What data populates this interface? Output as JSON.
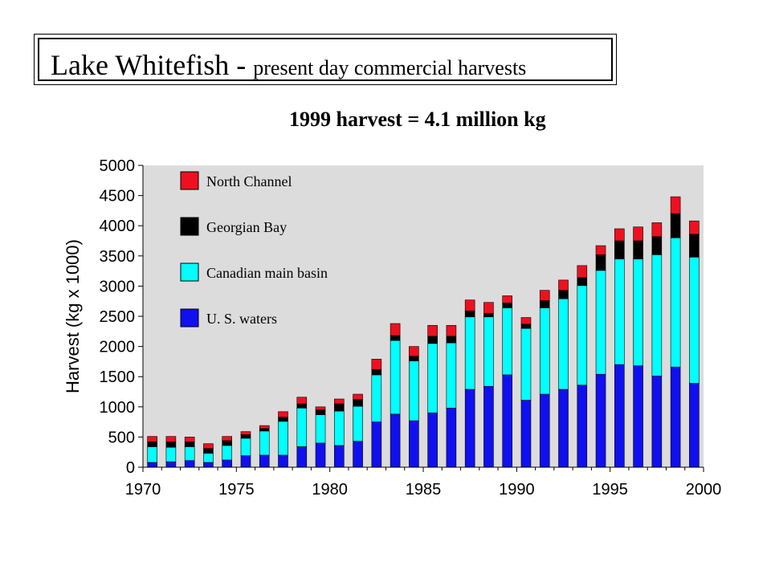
{
  "header": {
    "title_main": "Lake Whitefish - ",
    "title_sub": "present day commercial harvests",
    "subtitle": "1999 harvest = 4.1 million kg"
  },
  "chart_data": {
    "type": "bar",
    "stacked": true,
    "title": "",
    "xlabel": "",
    "ylabel": "Harvest (kg x 1000)",
    "ylim": [
      0,
      5000
    ],
    "yticks": [
      0,
      500,
      1000,
      1500,
      2000,
      2500,
      3000,
      3500,
      4000,
      4500,
      5000
    ],
    "xticks": [
      1970,
      1975,
      1980,
      1985,
      1990,
      1995,
      2000
    ],
    "xlim": [
      1970,
      2000
    ],
    "grid": false,
    "legend_position": "top-left",
    "categories": [
      1970,
      1971,
      1972,
      1973,
      1974,
      1975,
      1976,
      1977,
      1978,
      1979,
      1980,
      1981,
      1982,
      1983,
      1984,
      1985,
      1986,
      1987,
      1988,
      1989,
      1990,
      1991,
      1992,
      1993,
      1994,
      1995,
      1996,
      1997,
      1998,
      1999
    ],
    "series": [
      {
        "name": "U. S. waters",
        "color": "#1010ee",
        "values": [
          80,
          90,
          110,
          80,
          120,
          190,
          200,
          200,
          340,
          400,
          360,
          430,
          750,
          880,
          770,
          900,
          980,
          1290,
          1340,
          1530,
          1110,
          1210,
          1290,
          1360,
          1540,
          1700,
          1680,
          1510,
          1660,
          1390
        ]
      },
      {
        "name": "Canadian main basin",
        "color": "#00ffff",
        "values": [
          260,
          240,
          230,
          150,
          240,
          290,
          400,
          560,
          640,
          470,
          570,
          580,
          780,
          1220,
          990,
          1150,
          1080,
          1200,
          1150,
          1110,
          1190,
          1430,
          1500,
          1650,
          1720,
          1750,
          1770,
          2010,
          2140,
          2090
        ]
      },
      {
        "name": "Georgian Bay",
        "color": "#000000",
        "values": [
          80,
          90,
          80,
          80,
          80,
          60,
          40,
          70,
          70,
          80,
          120,
          110,
          90,
          80,
          80,
          120,
          110,
          100,
          60,
          80,
          70,
          120,
          140,
          130,
          260,
          300,
          300,
          300,
          400,
          380
        ]
      },
      {
        "name": "North Channel",
        "color": "#ee1020",
        "values": [
          90,
          90,
          80,
          80,
          70,
          50,
          50,
          90,
          110,
          50,
          80,
          90,
          170,
          200,
          160,
          180,
          180,
          180,
          180,
          120,
          110,
          170,
          170,
          200,
          150,
          200,
          230,
          230,
          280,
          220
        ]
      }
    ]
  }
}
